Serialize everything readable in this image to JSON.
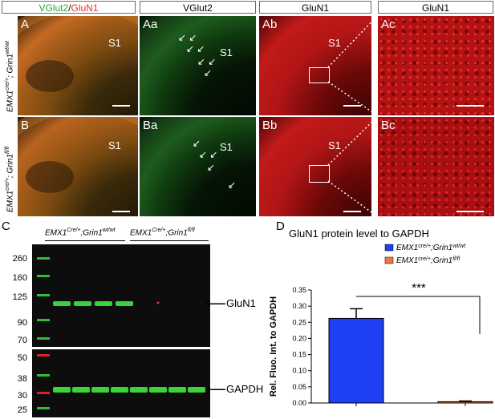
{
  "headers": {
    "col_a_vglut2": "VGlut2",
    "col_a_sep": "/",
    "col_a_glun1": "GluN1",
    "col_aa": "VGlut2",
    "col_ab": "GluN1",
    "col_ac": "GluN1"
  },
  "row_labels": {
    "top_gene": "EMX1",
    "top_sup1": "cre/+",
    "top_mid": "; Grin1",
    "top_sup2": "wt/wt",
    "bottom_gene": "EMX1",
    "bottom_sup1": "cre/+",
    "bottom_mid": "; Grin1",
    "bottom_sup2": "fl/fl"
  },
  "panels": {
    "A": "A",
    "Aa": "Aa",
    "Ab": "Ab",
    "Ac": "Ac",
    "B": "B",
    "Ba": "Ba",
    "Bb": "Bb",
    "Bc": "Bc",
    "region": "S1"
  },
  "blot": {
    "panel_label": "C",
    "group1_gene": "EMX1",
    "group1_sup1": "Cre/+",
    "group1_mid": ";Grin1",
    "group1_sup2": "wt/wt",
    "group2_gene": "EMX1",
    "group2_sup1": "Cre/+",
    "group2_mid": ";Grin1",
    "group2_sup2": "fl/fl",
    "markers_top": [
      "260",
      "160",
      "125",
      "90",
      "70"
    ],
    "markers_bottom": [
      "50",
      "38",
      "30",
      "25"
    ],
    "band_top": "GluN1",
    "band_bottom": "GAPDH"
  },
  "chart_panel_label": "D",
  "chart_data": {
    "type": "bar",
    "title": "GluN1 protein level to GAPDH",
    "ylabel": "Rel. Fluo. Int. to GAPDH",
    "ylim": [
      0,
      0.35
    ],
    "yticks": [
      "0.00",
      "0.05",
      "0.10",
      "0.15",
      "0.20",
      "0.25",
      "0.30",
      "0.35"
    ],
    "categories": [
      "EMX1 cre/+;Grin1 wt/wt",
      "EMX1 cre/+;Grin1 fl/fl"
    ],
    "values": [
      0.262,
      0.004
    ],
    "errors": [
      0.03,
      0.002
    ],
    "colors": [
      "#1f3ff5",
      "#f07a3a"
    ],
    "legend": [
      {
        "gene": "EMX1",
        "sup1": "cre/+",
        "mid": ";Grin1",
        "sup2": "wt/wt"
      },
      {
        "gene": "EMX1",
        "sup1": "cre/+",
        "mid": ";Grin1",
        "sup2": "fl/fl"
      }
    ],
    "annotation": "***"
  }
}
